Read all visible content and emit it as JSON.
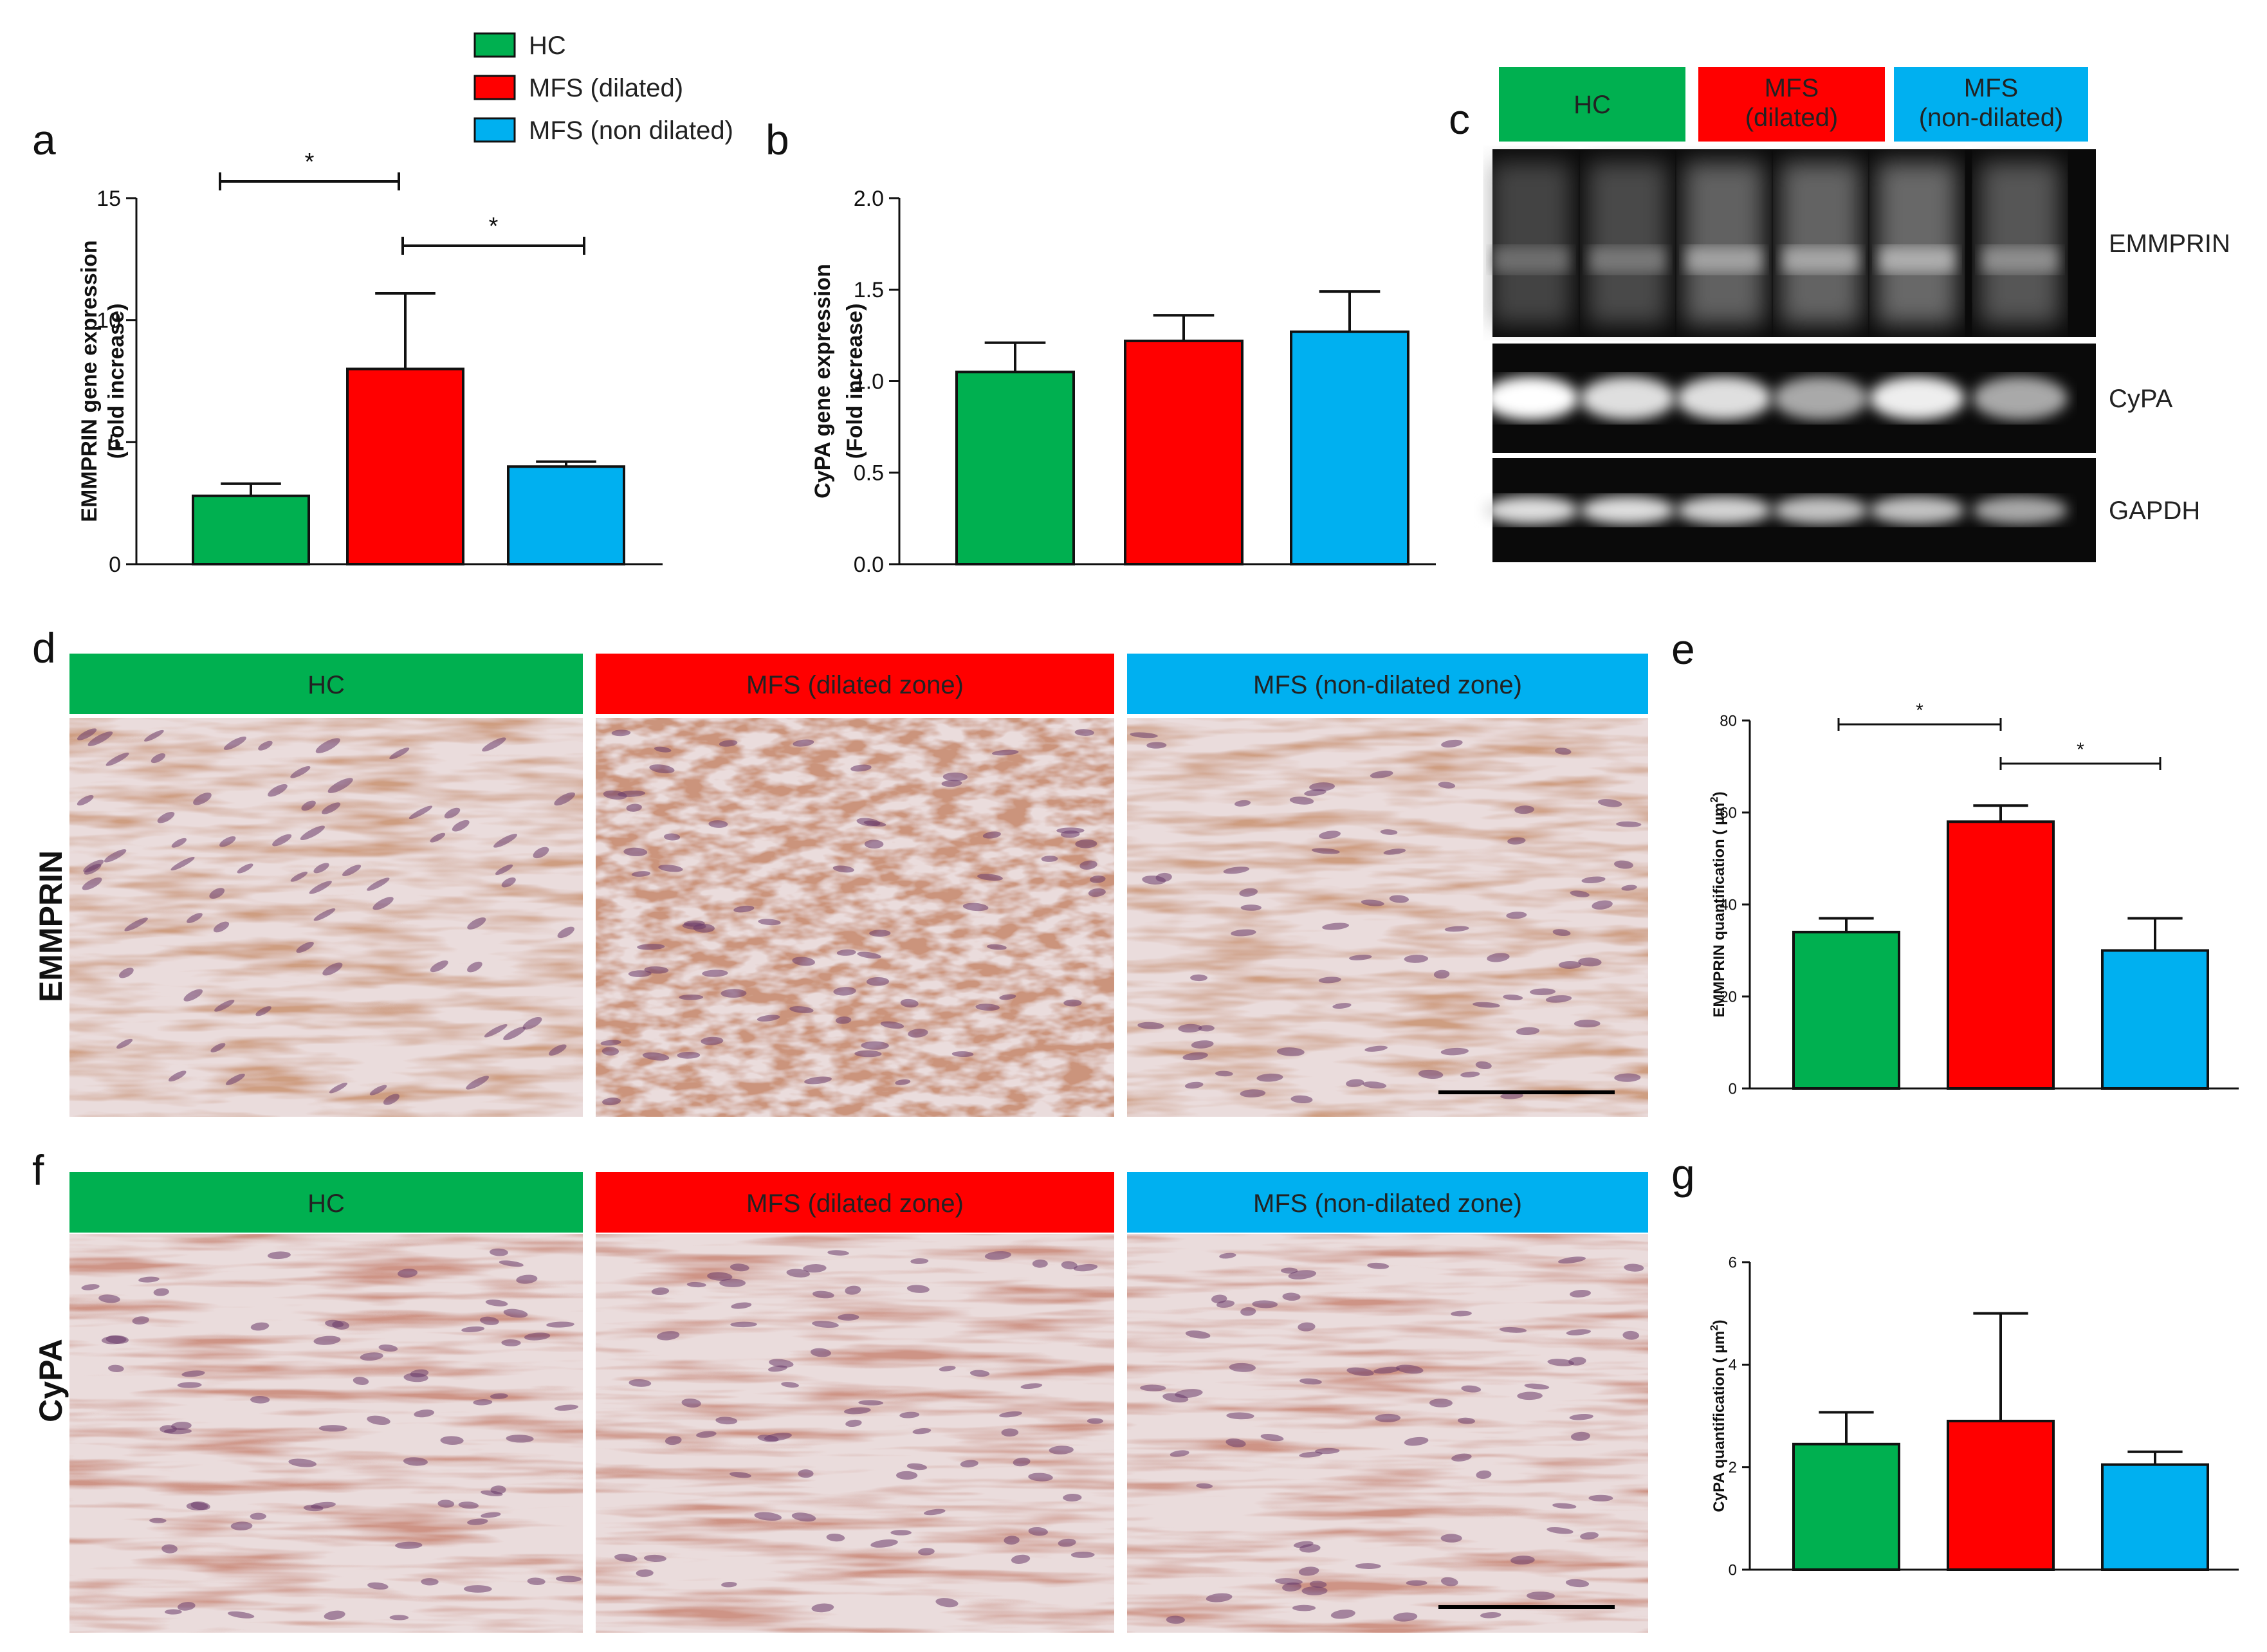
{
  "legend": [
    {
      "name": "HC",
      "color": "#00b050"
    },
    {
      "name": "MFS (dilated)",
      "color": "#ff0000"
    },
    {
      "name": "MFS (non dilated)",
      "color": "#00b0f0"
    }
  ],
  "panels": {
    "a": {
      "label": "a"
    },
    "b": {
      "label": "b"
    },
    "c": {
      "label": "c",
      "headers": [
        {
          "line1": "HC",
          "line2": "",
          "color": "#00b050"
        },
        {
          "line1": "MFS",
          "line2": "(dilated)",
          "color": "#ff0000"
        },
        {
          "line1": "MFS",
          "line2": "(non-dilated)",
          "color": "#00b0f0"
        }
      ],
      "blots": [
        {
          "name": "EMMPRIN",
          "intensities": [
            0.35,
            0.4,
            0.6,
            0.62,
            0.66,
            0.5
          ]
        },
        {
          "name": "CyPA",
          "intensities": [
            1.0,
            0.85,
            0.85,
            0.6,
            0.92,
            0.6
          ]
        },
        {
          "name": "GAPDH",
          "intensities": [
            0.85,
            0.85,
            0.8,
            0.72,
            0.72,
            0.6
          ]
        }
      ]
    },
    "d": {
      "label": "d",
      "row_label": "EMMPRIN",
      "headers": [
        {
          "text": "HC",
          "color": "#00b050"
        },
        {
          "text": "MFS (dilated zone)",
          "color": "#ff0000"
        },
        {
          "text": "MFS (non-dilated  zone)",
          "color": "#00b0f0"
        }
      ]
    },
    "e": {
      "label": "e"
    },
    "f": {
      "label": "f",
      "row_label": "CyPA",
      "headers": [
        {
          "text": "HC",
          "color": "#00b050"
        },
        {
          "text": "MFS (dilated zone)",
          "color": "#ff0000"
        },
        {
          "text": "MFS (non-dilated  zone)",
          "color": "#00b0f0"
        }
      ]
    },
    "g": {
      "label": "g"
    }
  },
  "chart_data": [
    {
      "id": "a",
      "type": "bar",
      "ylabel": "EMMPRIN gene expression",
      "ylabel2": "(Fold increase)",
      "ylim": [
        0,
        15
      ],
      "yticks": [
        0,
        5,
        10,
        15
      ],
      "categories": [
        "HC",
        "MFS (dilated)",
        "MFS (non dilated)"
      ],
      "values": [
        2.8,
        8.0,
        4.0
      ],
      "errors": [
        0.5,
        3.1,
        0.2
      ],
      "colors": [
        "#00b050",
        "#ff0000",
        "#00b0f0"
      ],
      "significance": [
        {
          "from": 0,
          "to": 1,
          "label": "*"
        },
        {
          "from": 1,
          "to": 2,
          "label": "*"
        }
      ]
    },
    {
      "id": "b",
      "type": "bar",
      "ylabel": "CyPA gene expression",
      "ylabel2": "(Fold increase)",
      "ylim": [
        0,
        2.0
      ],
      "yticks": [
        "0.0",
        "0.5",
        "1.0",
        "1.5",
        "2.0"
      ],
      "categories": [
        "HC",
        "MFS (dilated)",
        "MFS (non dilated)"
      ],
      "values": [
        1.05,
        1.22,
        1.27
      ],
      "errors": [
        0.16,
        0.14,
        0.22
      ],
      "colors": [
        "#00b050",
        "#ff0000",
        "#00b0f0"
      ],
      "significance": []
    },
    {
      "id": "e",
      "type": "bar",
      "ylabel": "EMMPRIN quantification ( µm",
      "ylabel_sup": "2",
      "ylabel_close": ")",
      "ylim": [
        0,
        80
      ],
      "yticks": [
        0,
        20,
        40,
        60,
        80
      ],
      "categories": [
        "HC",
        "MFS (dilated zone)",
        "MFS (non-dilated zone)"
      ],
      "values": [
        34,
        58,
        30
      ],
      "errors": [
        3,
        3.5,
        7
      ],
      "colors": [
        "#00b050",
        "#ff0000",
        "#00b0f0"
      ],
      "significance": [
        {
          "from": 0,
          "to": 1,
          "label": "*"
        },
        {
          "from": 1,
          "to": 2,
          "label": "*"
        }
      ]
    },
    {
      "id": "g",
      "type": "bar",
      "ylabel": "CyPA quantification ( µm",
      "ylabel_sup": "2",
      "ylabel_close": ")",
      "ylim": [
        0,
        6
      ],
      "yticks": [
        0,
        2,
        4,
        6
      ],
      "categories": [
        "HC",
        "MFS (dilated zone)",
        "MFS (non-dilated zone)"
      ],
      "values": [
        2.45,
        2.9,
        2.05
      ],
      "errors": [
        0.62,
        2.1,
        0.25
      ],
      "colors": [
        "#00b050",
        "#ff0000",
        "#00b0f0"
      ],
      "significance": []
    }
  ]
}
